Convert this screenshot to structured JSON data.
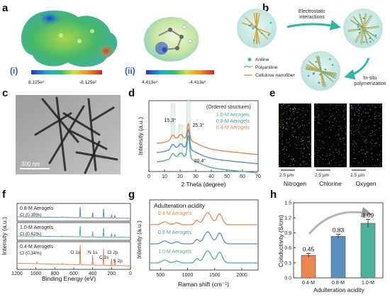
{
  "panels": {
    "a": {
      "letter": "a",
      "i": {
        "label": "(i)",
        "min": "8.125e²",
        "max": "-8.125e²"
      },
      "ii": {
        "label": "(ii)",
        "min": "4.413e²",
        "max": "-4.413e²"
      }
    },
    "b": {
      "letter": "b",
      "arrow_top": "Electrostatic\ninteractions",
      "arrow_bottom": "In-situ\npolymerization",
      "legend": [
        "Aniline",
        "Polyaniline",
        "Cellulose nanofiber"
      ]
    },
    "c": {
      "letter": "c",
      "scale": "300 nm"
    },
    "e": {
      "letter": "e",
      "scale": "2.5 μm",
      "elements": [
        "Nitrogen",
        "Chlorine",
        "Oxygen"
      ]
    },
    "d": {
      "letter": "d"
    },
    "f": {
      "letter": "f"
    },
    "g": {
      "letter": "g"
    },
    "h": {
      "letter": "h"
    }
  },
  "colors": {
    "s04": "#e8864f",
    "s08": "#5b8fbd",
    "s10": "#4cb29a",
    "nitrogen": "#d8d24a",
    "chlorine": "#58c23e",
    "oxygen": "#3fd0d8"
  },
  "chart_data": [
    {
      "id": "d",
      "type": "line",
      "title": "",
      "xlabel": "2 Theta (degree)",
      "ylabel": "Intensity (a.u.)",
      "xlim": [
        0,
        70
      ],
      "xticks": [
        0,
        10,
        20,
        30,
        40,
        50,
        60,
        70
      ],
      "legend_title": "(Ordered structures)",
      "legend_position": "top-right",
      "series": [
        {
          "name": "1.0-M Aerogels",
          "color": "#4cb29a",
          "peaks": [
            15.3,
            20.4,
            25.3
          ]
        },
        {
          "name": "0.8-M Aerogels",
          "color": "#5b8fbd",
          "peaks": [
            15.3,
            20.4,
            25.3
          ]
        },
        {
          "name": "0.4-M Aerogels",
          "color": "#e8864f",
          "peaks": [
            15.3,
            20.4,
            25.3
          ]
        }
      ],
      "annotations": [
        "15.3°",
        "25.3°",
        "20.4°"
      ]
    },
    {
      "id": "f",
      "type": "line",
      "title": "",
      "xlabel": "Binding Energy (eV)",
      "ylabel": "Intensity (a.u.)",
      "xlim": [
        1200,
        0
      ],
      "xticks": [
        1200,
        1000,
        800,
        600,
        400,
        200,
        0
      ],
      "series": [
        {
          "name": "0.8-M Aerogels",
          "cl": "Cl (0.35%)",
          "color": "#5b8fbd"
        },
        {
          "name": "1.0-M Aerogels",
          "cl": "Cl (0.62%)",
          "color": "#4cb29a"
        },
        {
          "name": "0.4-M Aerogels",
          "cl": "Cl (0.34%)",
          "color": "#e8864f"
        }
      ],
      "peak_labels": [
        "O 1s",
        "N 1s",
        "C 1s",
        "Cl 2p",
        "S 2p"
      ]
    },
    {
      "id": "g",
      "type": "line",
      "title": "Adulteration acidity",
      "xlabel": "Raman shift (cm⁻¹)",
      "ylabel": "Intensity (a.u.)",
      "xlim": [
        300,
        2300
      ],
      "xticks": [
        500,
        1000,
        1500,
        2000
      ],
      "series": [
        {
          "name": "0.4-M Aerogels",
          "color": "#e8864f"
        },
        {
          "name": "0.8-M Aerogels",
          "color": "#5b8fbd"
        },
        {
          "name": "1.0-M Aerogels",
          "color": "#4cb29a"
        }
      ]
    },
    {
      "id": "h",
      "type": "bar",
      "title": "",
      "xlabel": "Adulteration acidity",
      "ylabel": "Conductivity (S/cm)",
      "ylim": [
        0,
        1.5
      ],
      "yticks": [
        "0.0",
        "0.3",
        "0.6",
        "0.9",
        "1.2",
        "1.5"
      ],
      "categories": [
        "0.4-M",
        "0.8-M",
        "1.0-M"
      ],
      "values": [
        0.45,
        0.83,
        1.09
      ],
      "value_labels": [
        "0.45",
        "0.83",
        "1.09"
      ],
      "errors": [
        0.04,
        0.04,
        0.08
      ],
      "colors": [
        "#e8864f",
        "#5b8fbd",
        "#4cb29a"
      ]
    }
  ]
}
